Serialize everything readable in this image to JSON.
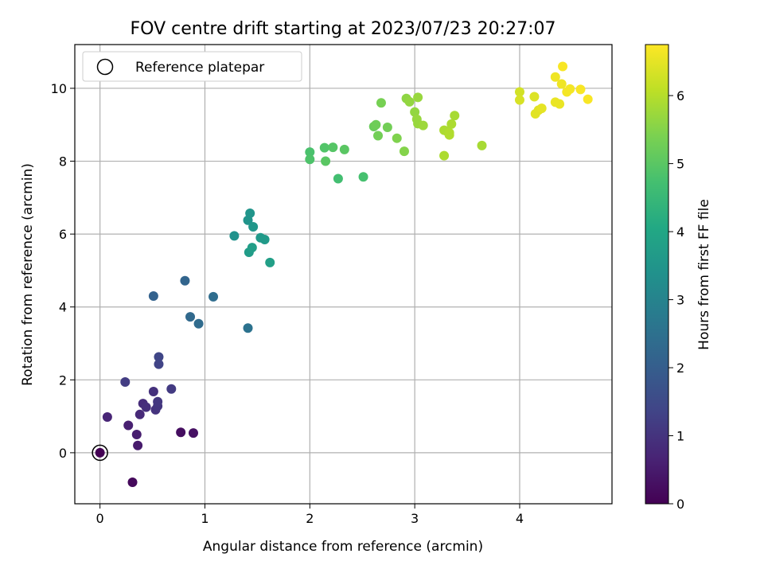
{
  "chart_data": {
    "type": "scatter",
    "title": "FOV centre drift starting at 2023/07/23 20:27:07",
    "xlabel": "Angular distance from reference (arcmin)",
    "ylabel": "Rotation from reference (arcmin)",
    "xlim": [
      -0.24,
      4.88
    ],
    "ylim": [
      -1.4,
      11.2
    ],
    "xticks": [
      0,
      1,
      2,
      3,
      4
    ],
    "yticks": [
      0,
      2,
      4,
      6,
      8,
      10
    ],
    "grid": true,
    "legend": {
      "placement": "upper-left",
      "entries": [
        "Reference platepar"
      ]
    },
    "colorbar": {
      "label": "Hours from first FF file",
      "range": [
        0,
        6.75
      ],
      "ticks": [
        0,
        1,
        2,
        3,
        4,
        5,
        6
      ],
      "colormap": "viridis"
    },
    "reference_point": {
      "x": 0,
      "y": 0
    },
    "points": [
      {
        "x": 0.0,
        "y": 0.0,
        "c": 0.0
      },
      {
        "x": 0.31,
        "y": -0.81,
        "c": 0.15
      },
      {
        "x": 0.77,
        "y": 0.56,
        "c": 0.25
      },
      {
        "x": 0.89,
        "y": 0.54,
        "c": 0.3
      },
      {
        "x": 0.36,
        "y": 0.2,
        "c": 0.5
      },
      {
        "x": 0.35,
        "y": 0.5,
        "c": 0.55
      },
      {
        "x": 0.27,
        "y": 0.75,
        "c": 0.6
      },
      {
        "x": 0.07,
        "y": 0.98,
        "c": 0.7
      },
      {
        "x": 0.38,
        "y": 1.05,
        "c": 0.8
      },
      {
        "x": 0.41,
        "y": 1.35,
        "c": 0.85
      },
      {
        "x": 0.44,
        "y": 1.25,
        "c": 0.9
      },
      {
        "x": 0.51,
        "y": 1.68,
        "c": 0.95
      },
      {
        "x": 0.53,
        "y": 1.18,
        "c": 1.0
      },
      {
        "x": 0.55,
        "y": 1.28,
        "c": 1.05
      },
      {
        "x": 0.55,
        "y": 1.4,
        "c": 1.1
      },
      {
        "x": 0.68,
        "y": 1.75,
        "c": 1.15
      },
      {
        "x": 0.24,
        "y": 1.94,
        "c": 1.2
      },
      {
        "x": 0.56,
        "y": 2.43,
        "c": 1.35
      },
      {
        "x": 0.56,
        "y": 2.63,
        "c": 1.4
      },
      {
        "x": 0.51,
        "y": 4.3,
        "c": 2.1
      },
      {
        "x": 0.81,
        "y": 4.72,
        "c": 2.2
      },
      {
        "x": 0.86,
        "y": 3.73,
        "c": 2.3
      },
      {
        "x": 0.94,
        "y": 3.54,
        "c": 2.35
      },
      {
        "x": 1.08,
        "y": 4.28,
        "c": 2.4
      },
      {
        "x": 1.41,
        "y": 3.42,
        "c": 2.55
      },
      {
        "x": 1.28,
        "y": 5.95,
        "c": 3.4
      },
      {
        "x": 1.41,
        "y": 6.38,
        "c": 3.45
      },
      {
        "x": 1.43,
        "y": 6.57,
        "c": 3.5
      },
      {
        "x": 1.46,
        "y": 6.2,
        "c": 3.55
      },
      {
        "x": 1.53,
        "y": 5.9,
        "c": 3.6
      },
      {
        "x": 1.57,
        "y": 5.85,
        "c": 3.65
      },
      {
        "x": 1.42,
        "y": 5.5,
        "c": 3.7
      },
      {
        "x": 1.45,
        "y": 5.63,
        "c": 3.75
      },
      {
        "x": 1.62,
        "y": 5.22,
        "c": 3.8
      },
      {
        "x": 2.0,
        "y": 8.25,
        "c": 4.8
      },
      {
        "x": 2.0,
        "y": 8.05,
        "c": 4.85
      },
      {
        "x": 2.14,
        "y": 8.37,
        "c": 4.9
      },
      {
        "x": 2.22,
        "y": 8.38,
        "c": 4.95
      },
      {
        "x": 2.33,
        "y": 8.32,
        "c": 5.0
      },
      {
        "x": 2.15,
        "y": 8.0,
        "c": 5.0
      },
      {
        "x": 2.27,
        "y": 7.52,
        "c": 4.7
      },
      {
        "x": 2.51,
        "y": 7.57,
        "c": 4.75
      },
      {
        "x": 2.61,
        "y": 8.95,
        "c": 5.2
      },
      {
        "x": 2.63,
        "y": 9.0,
        "c": 5.25
      },
      {
        "x": 2.68,
        "y": 9.6,
        "c": 5.35
      },
      {
        "x": 2.74,
        "y": 8.93,
        "c": 5.3
      },
      {
        "x": 2.65,
        "y": 8.7,
        "c": 5.3
      },
      {
        "x": 2.83,
        "y": 8.63,
        "c": 5.45
      },
      {
        "x": 2.9,
        "y": 8.27,
        "c": 5.5
      },
      {
        "x": 2.92,
        "y": 9.72,
        "c": 5.6
      },
      {
        "x": 2.95,
        "y": 9.63,
        "c": 5.65
      },
      {
        "x": 3.03,
        "y": 9.75,
        "c": 5.7
      },
      {
        "x": 3.0,
        "y": 9.35,
        "c": 5.65
      },
      {
        "x": 3.02,
        "y": 9.15,
        "c": 5.7
      },
      {
        "x": 3.03,
        "y": 9.03,
        "c": 5.7
      },
      {
        "x": 3.08,
        "y": 8.98,
        "c": 5.75
      },
      {
        "x": 3.28,
        "y": 8.85,
        "c": 5.9
      },
      {
        "x": 3.3,
        "y": 8.83,
        "c": 5.9
      },
      {
        "x": 3.33,
        "y": 8.72,
        "c": 5.95
      },
      {
        "x": 3.33,
        "y": 8.78,
        "c": 5.95
      },
      {
        "x": 3.35,
        "y": 9.02,
        "c": 5.9
      },
      {
        "x": 3.38,
        "y": 9.25,
        "c": 5.85
      },
      {
        "x": 3.28,
        "y": 8.15,
        "c": 5.9
      },
      {
        "x": 3.64,
        "y": 8.43,
        "c": 5.85
      },
      {
        "x": 4.0,
        "y": 9.9,
        "c": 6.3
      },
      {
        "x": 4.0,
        "y": 9.68,
        "c": 6.35
      },
      {
        "x": 4.14,
        "y": 9.77,
        "c": 6.4
      },
      {
        "x": 4.15,
        "y": 9.3,
        "c": 6.45
      },
      {
        "x": 4.18,
        "y": 9.4,
        "c": 6.45
      },
      {
        "x": 4.21,
        "y": 9.45,
        "c": 6.5
      },
      {
        "x": 4.34,
        "y": 10.31,
        "c": 6.6
      },
      {
        "x": 4.34,
        "y": 9.62,
        "c": 6.55
      },
      {
        "x": 4.38,
        "y": 9.57,
        "c": 6.55
      },
      {
        "x": 4.4,
        "y": 10.12,
        "c": 6.6
      },
      {
        "x": 4.41,
        "y": 10.6,
        "c": 6.7
      },
      {
        "x": 4.45,
        "y": 9.9,
        "c": 6.65
      },
      {
        "x": 4.48,
        "y": 9.98,
        "c": 6.65
      },
      {
        "x": 4.58,
        "y": 9.97,
        "c": 6.7
      },
      {
        "x": 4.65,
        "y": 9.7,
        "c": 6.7
      }
    ]
  }
}
